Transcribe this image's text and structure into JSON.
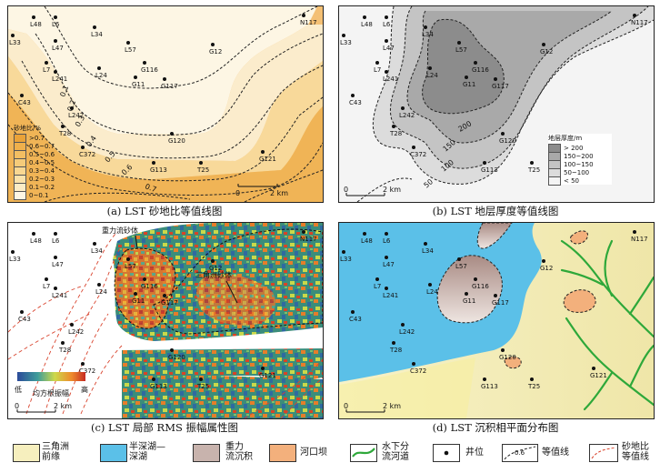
{
  "captions": {
    "a": "(a) LST 砂地比等值线图",
    "b": "(b) LST 地层厚度等值线图",
    "c": "(c) LST 局部 RMS 振幅属性图",
    "d": "(d) LST 沉积相平面分布图"
  },
  "wells": [
    "N117",
    "L48",
    "L6",
    "L33",
    "L34",
    "L47",
    "L57",
    "G12",
    "L7",
    "L241",
    "L24",
    "G116",
    "G11",
    "G117",
    "C43",
    "L242",
    "T28",
    "C372",
    "G120",
    "G121",
    "G113",
    "T25"
  ],
  "panel_a": {
    "legend_title": "砂地比/%",
    "legend_items": [
      ">0.7",
      "0.6~0.7",
      "0.5~0.6",
      "0.4~0.5",
      "0.3~0.4",
      "0.2~0.3",
      "0.1~0.2",
      "0~0.1"
    ],
    "legend_colors": [
      "#eaa238",
      "#efb04c",
      "#f2be62",
      "#f5cb7a",
      "#f8d792",
      "#f9e2ab",
      "#fbecc6",
      "#fdf6e4"
    ],
    "contour_labels": [
      "0.1",
      "0.2",
      "0.3",
      "0.4",
      "0.5",
      "0.6",
      "0.7"
    ],
    "scale": {
      "zero": "0",
      "dist": "2 km"
    }
  },
  "panel_b": {
    "legend_title": "地层厚度/m",
    "legend_items": [
      "> 200",
      "150~200",
      "100~150",
      "50~100",
      "< 50"
    ],
    "legend_colors": [
      "#8c8c8c",
      "#a9a9a9",
      "#c4c4c4",
      "#dcdcdc",
      "#f4f4f4"
    ],
    "contour_labels": [
      "200",
      "150",
      "100",
      "50"
    ],
    "scale": {
      "zero": "0",
      "dist": "2 km"
    }
  },
  "panel_c": {
    "labels": {
      "gravity": "重力流砂体",
      "delta": "三角洲砂体",
      "low": "低",
      "high": "高",
      "colorbar": "均方根振幅"
    },
    "scale": {
      "zero": "0",
      "dist": "2 km"
    }
  },
  "panel_d": {
    "scale": {
      "zero": "0",
      "dist": "2 km"
    }
  },
  "legend": {
    "delta_front": "三角洲\n前缘",
    "semi_deep": "半深湖—\n深湖",
    "gravity_flow": "重力\n流沉积",
    "mouth_bar": "河口坝",
    "channel": "水下分\n流河道",
    "well": "井位",
    "contour": "等值线",
    "contour_sample": "0.6",
    "sand_contour": "砂地比\n等值线"
  },
  "colors": {
    "lake": "#5bc0e8",
    "delta": "#f6efbe",
    "gravity": "#c8b3ad",
    "bar": "#f3b07c",
    "channel": "#2ea83a",
    "contour_red": "#d9452f"
  }
}
